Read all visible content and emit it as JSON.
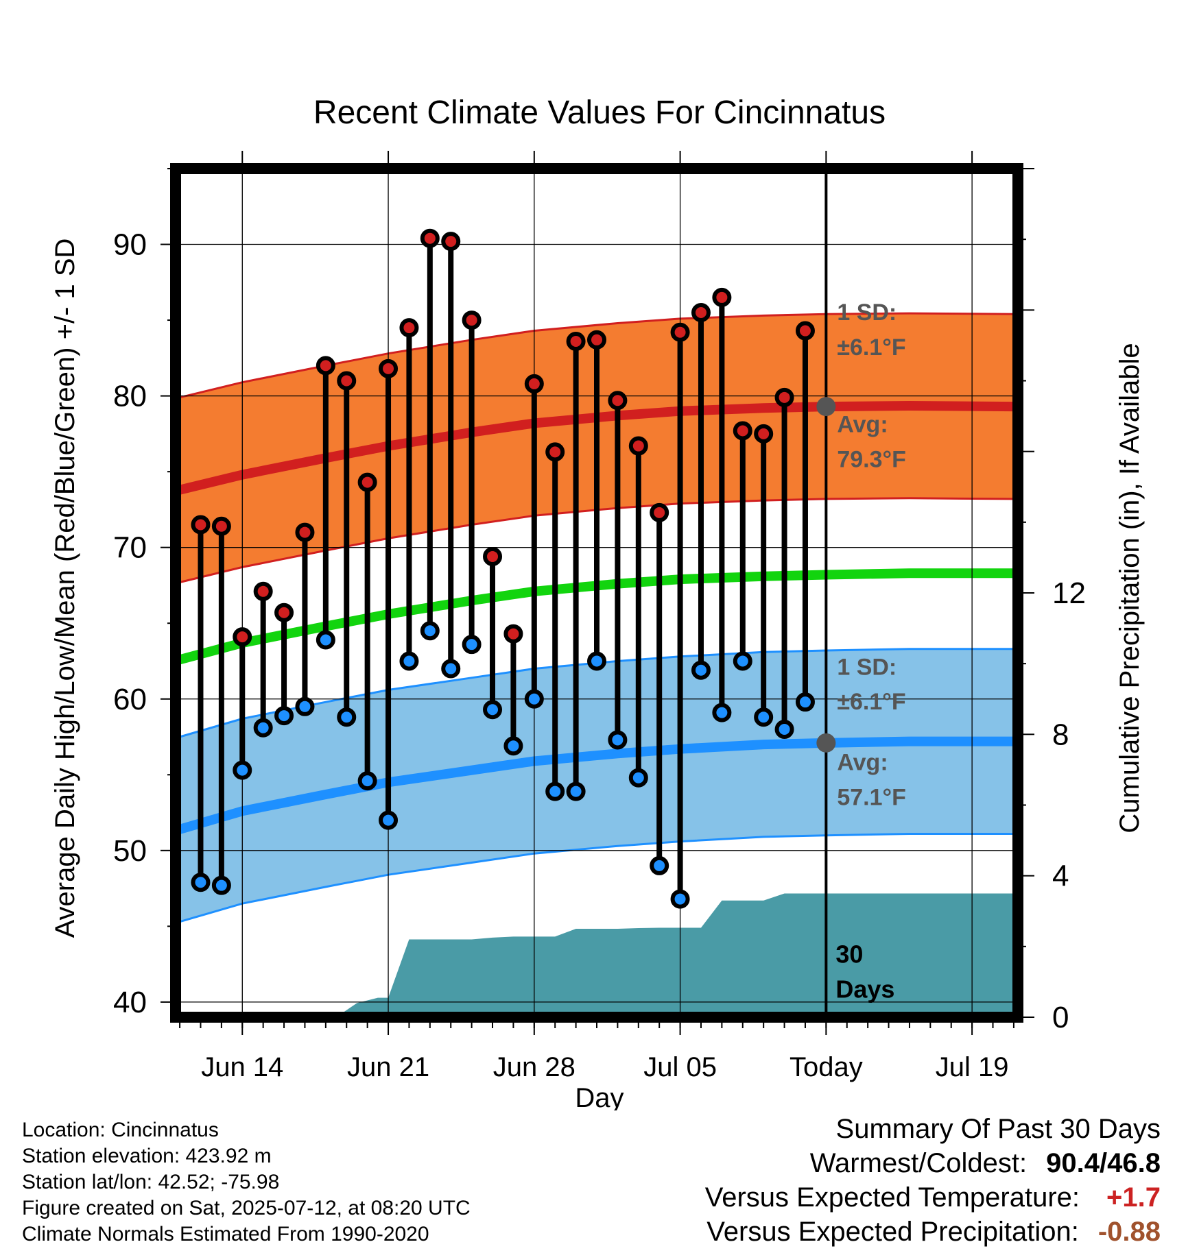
{
  "chart_data": {
    "type": "line",
    "title": "Recent Climate Values For Cincinnatus",
    "xlabel": "Day",
    "ylabel_left": "Average Daily High/Low/Mean (Red/Blue/Green) +/- 1 SD",
    "ylabel_right": "Cumulative Precipitation (in), If Available",
    "x_ticks": [
      "Jun 14",
      "Jun 21",
      "Jun 28",
      "Jul 05",
      "Today",
      "Jul 19"
    ],
    "x_tick_days": [
      14,
      21,
      28,
      35,
      42,
      49
    ],
    "x_range_days": [
      10.8,
      51.2
    ],
    "today_day": 42,
    "today_label": [
      "30",
      "Days"
    ],
    "ylim_left": [
      39,
      95
    ],
    "yticks_left": [
      40,
      50,
      60,
      70,
      80,
      90
    ],
    "ylim_right": [
      0,
      24
    ],
    "yticks_right": [
      0,
      4,
      8,
      12
    ],
    "grid": true,
    "colors": {
      "high": "#d11f1f",
      "high_band": "#f47c30",
      "low": "#1e90ff",
      "low_band": "#86c2e8",
      "mean": "#12d40e",
      "precip": "#4a9ba6",
      "annotation": "#555555",
      "positive": "#cc2222",
      "negative": "#a0522d"
    },
    "normal_high": {
      "name": "Avg",
      "days": [
        11,
        14,
        18,
        21,
        25,
        28,
        32,
        35,
        39,
        42,
        46,
        51
      ],
      "mean": [
        73.8,
        74.8,
        75.9,
        76.7,
        77.6,
        78.2,
        78.7,
        79.0,
        79.2,
        79.3,
        79.35,
        79.3
      ],
      "sd": 6.1,
      "label_sd": "1 SD:",
      "label_sd_value": "±6.1°F",
      "label_avg": "Avg:",
      "label_avg_value": "79.3°F"
    },
    "normal_low": {
      "name": "Avg",
      "days": [
        11,
        14,
        18,
        21,
        25,
        28,
        32,
        35,
        39,
        42,
        46,
        51
      ],
      "mean": [
        51.4,
        52.6,
        53.7,
        54.5,
        55.3,
        55.9,
        56.4,
        56.7,
        57.0,
        57.1,
        57.2,
        57.2
      ],
      "sd": 6.1,
      "label_sd": "1 SD:",
      "label_sd_value": "±6.1°F",
      "label_avg": "Avg:",
      "label_avg_value": "57.1°F"
    },
    "normal_mean": {
      "days": [
        11,
        14,
        18,
        21,
        25,
        28,
        32,
        35,
        39,
        42,
        46,
        51
      ],
      "values": [
        62.6,
        63.7,
        64.8,
        65.6,
        66.5,
        67.1,
        67.6,
        67.9,
        68.1,
        68.2,
        68.3,
        68.3
      ]
    },
    "observed": {
      "days": [
        12,
        13,
        14,
        15,
        16,
        17,
        18,
        19,
        20,
        21,
        22,
        23,
        24,
        25,
        26,
        27,
        28,
        29,
        30,
        31,
        32,
        33,
        34,
        35,
        36,
        37,
        38,
        39,
        40,
        41
      ],
      "high": [
        71.5,
        71.4,
        64.1,
        67.1,
        65.7,
        71.0,
        82.0,
        81.0,
        74.3,
        81.8,
        84.5,
        90.4,
        90.2,
        85.0,
        69.4,
        64.3,
        80.8,
        76.3,
        83.6,
        83.7,
        79.7,
        76.7,
        72.3,
        84.2,
        85.5,
        86.5,
        77.7,
        77.5,
        79.9,
        84.3
      ],
      "low": [
        47.9,
        47.7,
        55.3,
        58.1,
        58.9,
        59.5,
        63.9,
        58.8,
        54.6,
        52.0,
        62.5,
        64.5,
        62.0,
        63.6,
        59.3,
        56.9,
        60.0,
        53.9,
        53.9,
        62.5,
        57.3,
        54.8,
        49.0,
        46.8,
        61.9,
        59.1,
        62.5,
        58.8,
        58.0,
        59.8
      ]
    },
    "cumulative_precip": {
      "days": [
        10.8,
        14,
        17,
        18.5,
        19.5,
        20.5,
        21,
        22,
        23,
        24,
        25,
        26,
        27,
        29,
        30,
        31,
        32,
        33,
        34,
        35,
        36,
        37,
        38,
        39,
        40,
        41,
        42,
        51.2
      ],
      "values": [
        0,
        0,
        0,
        0,
        0.4,
        0.55,
        0.55,
        2.2,
        2.2,
        2.2,
        2.2,
        2.25,
        2.28,
        2.28,
        2.5,
        2.5,
        2.5,
        2.52,
        2.53,
        2.53,
        2.53,
        3.3,
        3.3,
        3.3,
        3.5,
        3.5,
        3.5,
        3.5
      ]
    }
  },
  "info": {
    "location": "Location: Cincinnatus",
    "elevation": "Station elevation: 423.92 m",
    "latlon": "Station lat/lon: 42.52; -75.98",
    "created": "Figure created on Sat, 2025-07-12, at 08:20 UTC",
    "normals": "Climate Normals Estimated From 1990-2020"
  },
  "summary": {
    "title": "Summary Of Past 30 Days",
    "warm_cold_label": "Warmest/Coldest:",
    "warm": "90.4",
    "separator": "/",
    "cold": "46.8",
    "temp_label": "Versus Expected Temperature:",
    "temp_value": "+1.7",
    "precip_label": "Versus Expected Precipitation:",
    "precip_value": "-0.88"
  }
}
